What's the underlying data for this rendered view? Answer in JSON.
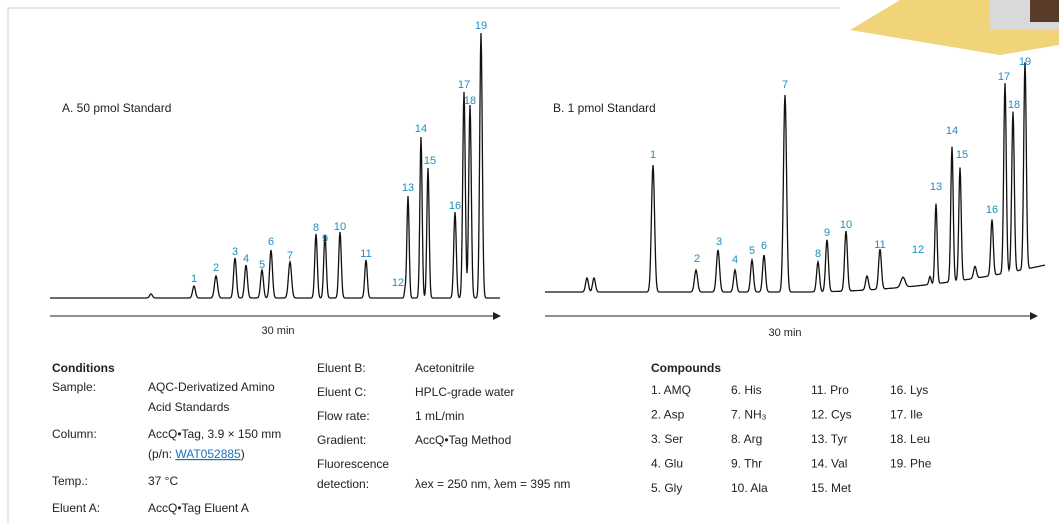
{
  "panels": [
    {
      "label": "A. 50 pmol Standard",
      "time_axis": "30 min",
      "peak_labels": [
        "1",
        "2",
        "3",
        "4",
        "5",
        "6",
        "7",
        "8",
        "9",
        "10",
        "11",
        "12",
        "13",
        "14",
        "15",
        "16",
        "17",
        "18",
        "19"
      ]
    },
    {
      "label": "B. 1 pmol Standard",
      "time_axis": "30 min",
      "peak_labels": [
        "1",
        "2",
        "3",
        "4",
        "5",
        "6",
        "7",
        "8",
        "9",
        "10",
        "11",
        "12",
        "13",
        "14",
        "15",
        "16",
        "17",
        "18",
        "19"
      ]
    }
  ],
  "conditions": {
    "title": "Conditions",
    "rows": [
      {
        "label": [
          "Sample:"
        ],
        "lines": [
          "AQC-Derivatized Amino",
          "Acid Standards"
        ]
      },
      {
        "label": [
          "Column:"
        ],
        "lines": [
          "AccQ•Tag, 3.9 × 150 mm"
        ],
        "part_number": {
          "prefix": "(p/n: ",
          "link": "WAT052885",
          "suffix": ")"
        }
      },
      {
        "label": [
          "Temp.:"
        ],
        "lines": [
          "37 °C"
        ]
      },
      {
        "label": [
          "Eluent A:"
        ],
        "lines": [
          "AccQ•Tag Eluent A"
        ]
      }
    ],
    "rows_2": [
      {
        "label": [
          "Eluent B:"
        ],
        "lines": [
          "Acetonitrile"
        ]
      },
      {
        "label": [
          "Eluent C:"
        ],
        "lines": [
          "HPLC-grade water"
        ]
      },
      {
        "label": [
          "Flow rate:"
        ],
        "lines": [
          "1 mL/min"
        ]
      },
      {
        "label": [
          "Gradient:"
        ],
        "lines": [
          "AccQ•Tag Method"
        ]
      },
      {
        "label": [
          "Fluorescence",
          "detection:"
        ],
        "lines": [
          "λex = 250 nm, λem = 395 nm"
        ]
      }
    ]
  },
  "compounds": {
    "title": "Compounds",
    "columns": [
      [
        "1. AMQ",
        "2. Asp",
        "3. Ser",
        "4. Glu",
        "5. Gly"
      ],
      [
        "6. His",
        "7. NH₃",
        "8. Arg",
        "9. Thr",
        "10. Ala"
      ],
      [
        "11. Pro",
        "12. Cys",
        "13. Tyr",
        "14. Val",
        "15. Met"
      ],
      [
        "16. Lys",
        "17. Ile",
        "18. Leu",
        "19. Phe"
      ]
    ]
  }
}
